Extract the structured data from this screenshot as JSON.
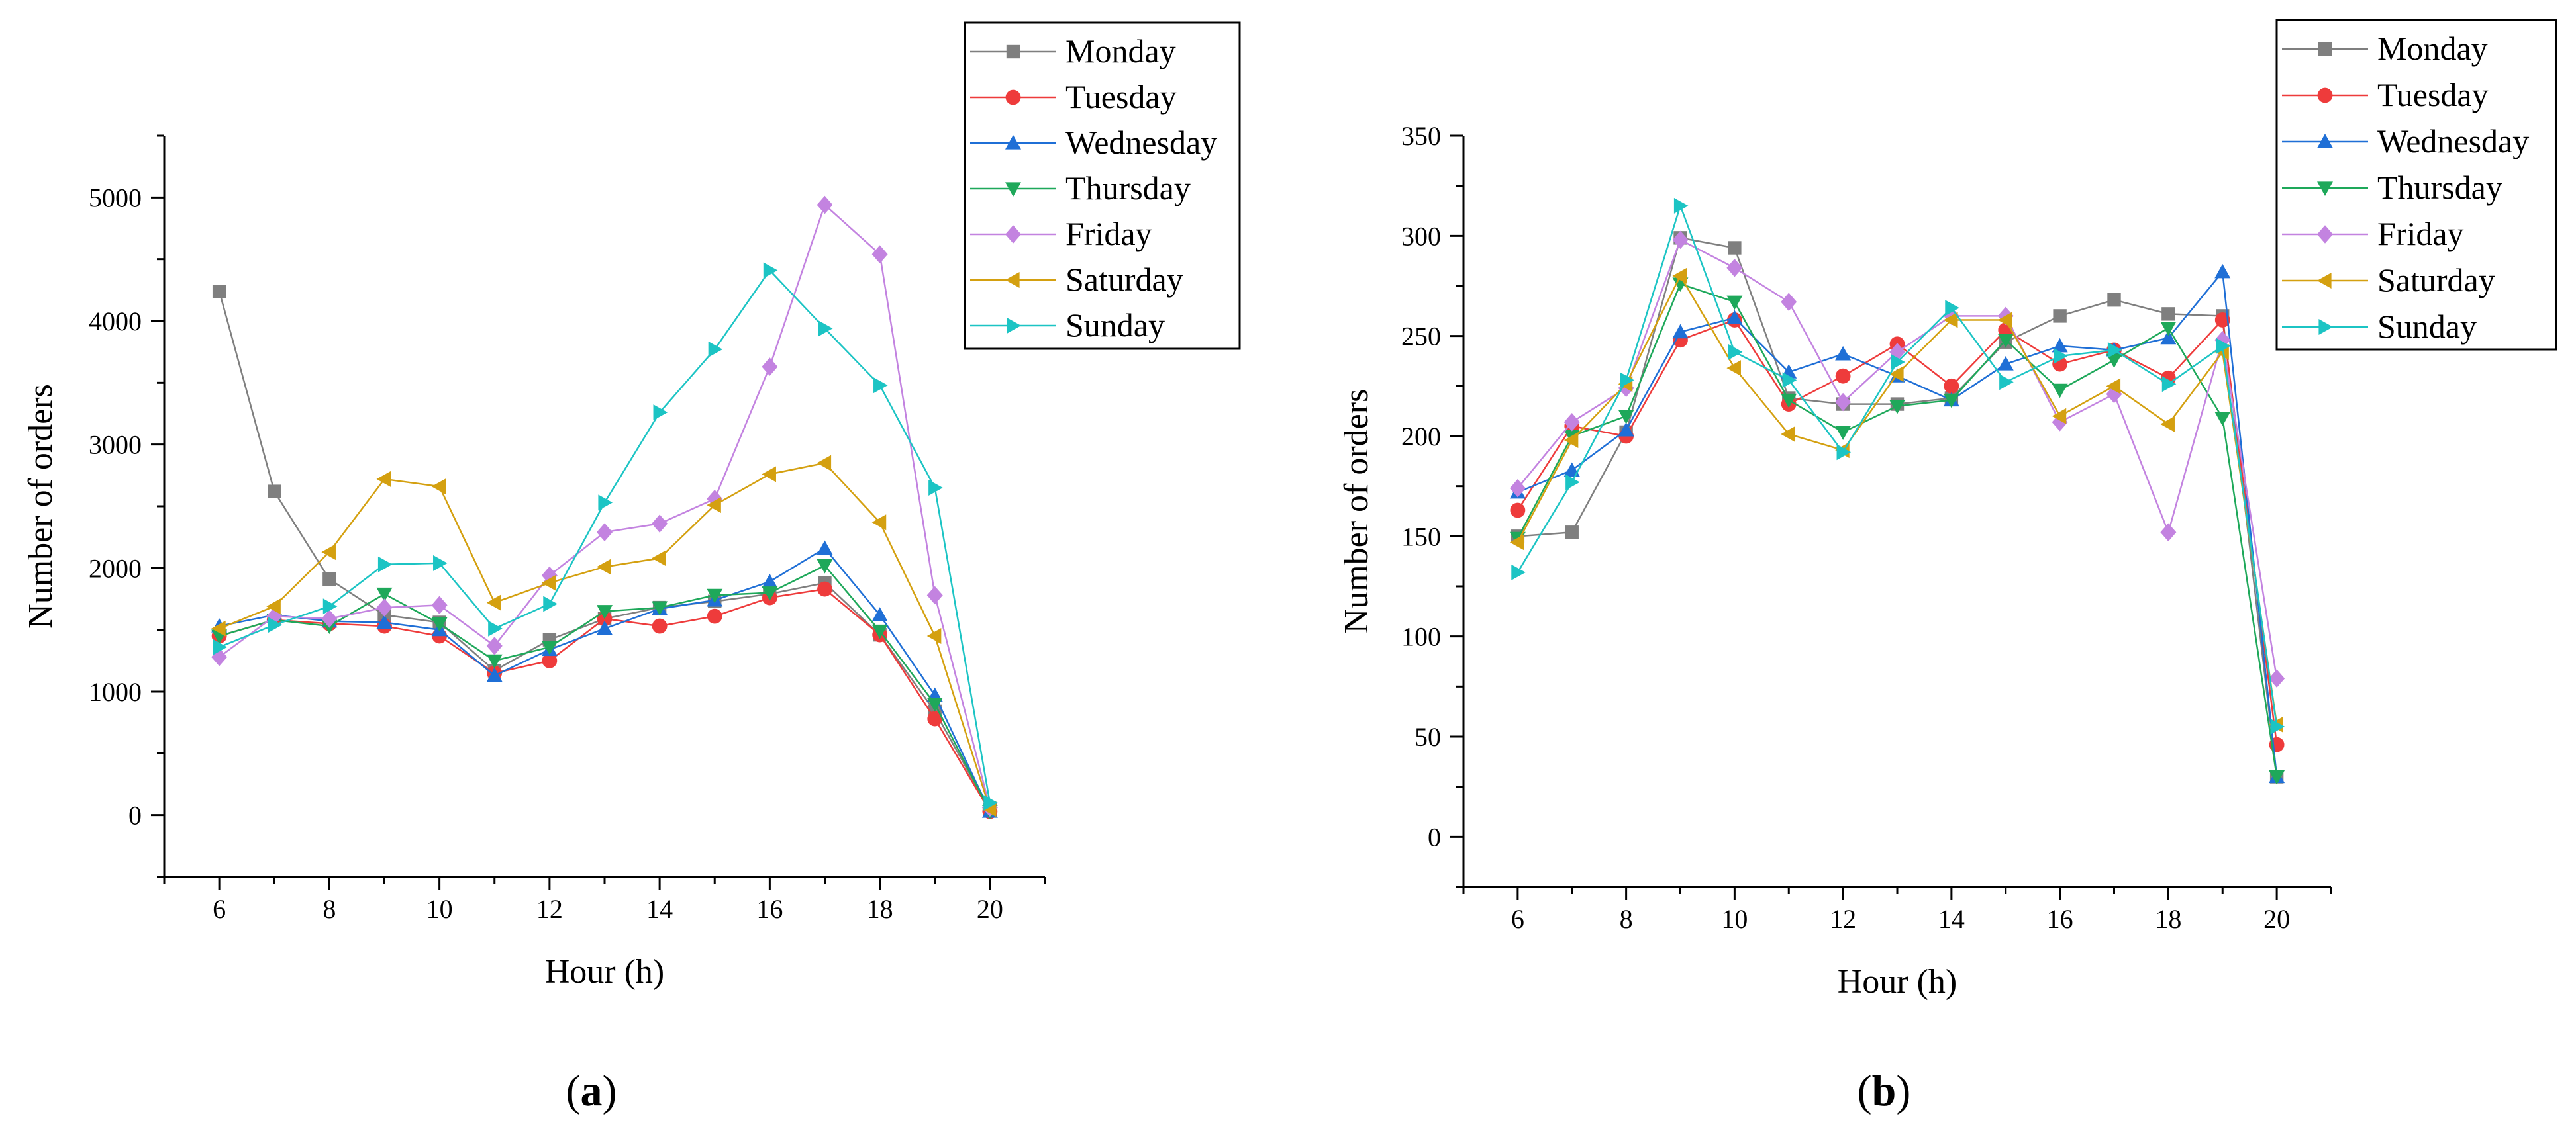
{
  "chart_data": [
    {
      "type": "line",
      "panel_label": {
        "open": "(",
        "letter": "a",
        "close": ")"
      },
      "xlabel": "Hour (h)",
      "ylabel": "Number of orders",
      "xlim": [
        5,
        21
      ],
      "ylim": [
        -500,
        5500
      ],
      "xticks": [
        6,
        8,
        10,
        12,
        14,
        16,
        18,
        20
      ],
      "yticks": [
        0,
        1000,
        2000,
        3000,
        4000,
        5000
      ],
      "x": [
        6,
        7,
        8,
        9,
        10,
        11,
        12,
        13,
        14,
        15,
        16,
        17,
        18,
        19,
        20
      ],
      "legend_position": "top-right",
      "series": [
        {
          "name": "Monday",
          "color": "#7f7f7f",
          "marker": "square",
          "values": [
            4240,
            2620,
            1910,
            1620,
            1560,
            1170,
            1420,
            1590,
            1680,
            1730,
            1790,
            1880,
            1460,
            840,
            40
          ]
        },
        {
          "name": "Tuesday",
          "color": "#ee3b3b",
          "marker": "circle",
          "values": [
            1450,
            1580,
            1550,
            1530,
            1450,
            1150,
            1250,
            1590,
            1530,
            1610,
            1760,
            1830,
            1460,
            780,
            30
          ]
        },
        {
          "name": "Wednesday",
          "color": "#1f6fd6",
          "marker": "triangle-up",
          "values": [
            1530,
            1620,
            1570,
            1560,
            1500,
            1130,
            1340,
            1510,
            1670,
            1740,
            1890,
            2160,
            1620,
            970,
            30
          ]
        },
        {
          "name": "Thursday",
          "color": "#1ea85a",
          "marker": "triangle-down",
          "values": [
            1450,
            1580,
            1530,
            1790,
            1550,
            1250,
            1360,
            1650,
            1680,
            1780,
            1800,
            2020,
            1490,
            900,
            30
          ]
        },
        {
          "name": "Friday",
          "color": "#c383e0",
          "marker": "diamond",
          "values": [
            1280,
            1610,
            1590,
            1680,
            1700,
            1370,
            1940,
            2290,
            2360,
            2560,
            3630,
            4940,
            4540,
            1780,
            60
          ]
        },
        {
          "name": "Saturday",
          "color": "#d4a010",
          "marker": "triangle-left",
          "values": [
            1510,
            1690,
            2130,
            2720,
            2660,
            1720,
            1880,
            2010,
            2080,
            2510,
            2760,
            2850,
            2370,
            1450,
            50
          ]
        },
        {
          "name": "Sunday",
          "color": "#1cc4c4",
          "marker": "triangle-right",
          "values": [
            1360,
            1540,
            1690,
            2030,
            2040,
            1510,
            1710,
            2530,
            3260,
            3770,
            4410,
            3940,
            3480,
            2650,
            100
          ]
        }
      ]
    },
    {
      "type": "line",
      "panel_label": {
        "open": "(",
        "letter": "b",
        "close": ")"
      },
      "xlabel": "Hour (h)",
      "ylabel": "Number of orders",
      "xlim": [
        5,
        21
      ],
      "ylim": [
        -25,
        350
      ],
      "xticks": [
        6,
        8,
        10,
        12,
        14,
        16,
        18,
        20
      ],
      "yticks": [
        0,
        50,
        100,
        150,
        200,
        250,
        300,
        350
      ],
      "x": [
        6,
        7,
        8,
        9,
        10,
        11,
        12,
        13,
        14,
        15,
        16,
        17,
        18,
        19,
        20
      ],
      "legend_position": "top-right",
      "series": [
        {
          "name": "Monday",
          "color": "#7f7f7f",
          "marker": "square",
          "values": [
            150,
            152,
            202,
            299,
            294,
            219,
            216,
            216,
            219,
            247,
            260,
            268,
            261,
            260,
            30
          ]
        },
        {
          "name": "Tuesday",
          "color": "#ee3b3b",
          "marker": "circle",
          "values": [
            163,
            205,
            200,
            248,
            258,
            216,
            230,
            246,
            225,
            253,
            236,
            243,
            229,
            258,
            46
          ]
        },
        {
          "name": "Wednesday",
          "color": "#1f6fd6",
          "marker": "triangle-up",
          "values": [
            172,
            183,
            203,
            252,
            259,
            232,
            241,
            230,
            218,
            236,
            245,
            243,
            249,
            282,
            30
          ]
        },
        {
          "name": "Thursday",
          "color": "#1ea85a",
          "marker": "triangle-down",
          "values": [
            149,
            200,
            210,
            276,
            267,
            218,
            202,
            215,
            218,
            248,
            223,
            238,
            254,
            209,
            30
          ]
        },
        {
          "name": "Friday",
          "color": "#c383e0",
          "marker": "diamond",
          "values": [
            174,
            207,
            224,
            298,
            284,
            267,
            217,
            242,
            260,
            260,
            207,
            221,
            152,
            248,
            79
          ]
        },
        {
          "name": "Saturday",
          "color": "#d4a010",
          "marker": "triangle-left",
          "values": [
            147,
            198,
            226,
            280,
            234,
            201,
            193,
            231,
            258,
            258,
            210,
            225,
            206,
            242,
            56
          ]
        },
        {
          "name": "Sunday",
          "color": "#1cc4c4",
          "marker": "triangle-right",
          "values": [
            132,
            177,
            228,
            315,
            242,
            228,
            192,
            237,
            264,
            227,
            240,
            243,
            226,
            245,
            55
          ]
        }
      ]
    }
  ]
}
